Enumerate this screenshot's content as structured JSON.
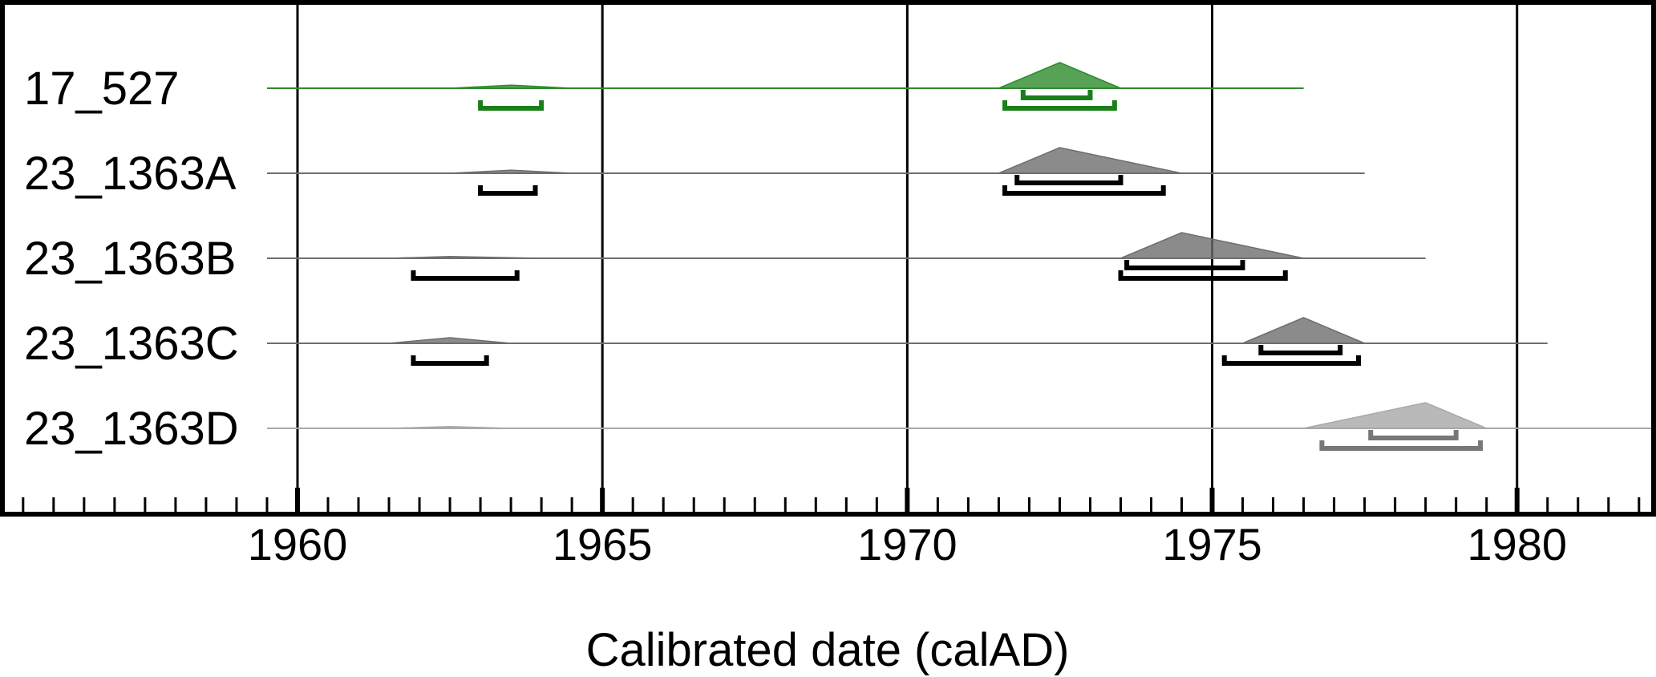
{
  "chart_data": {
    "type": "radiocarbon-calibration-multiplot",
    "xlabel": "Calibrated date (calAD)",
    "xlim": [
      1955.2,
      1982.2
    ],
    "x_ticks": [
      1960,
      1965,
      1970,
      1975,
      1980
    ],
    "x_tick_labels": [
      "1960",
      "1965",
      "1970",
      "1975",
      "1980"
    ],
    "minor_tick_step": 0.5,
    "grid": "vertical lines at major ticks",
    "series": [
      {
        "name": "17_527",
        "color": "#2e8b2e",
        "range_color": "#1a7f1a",
        "baseline": [
          1959.5,
          1976.5
        ],
        "peaks": [
          {
            "from": 1962.5,
            "mode": 1963.5,
            "to": 1964.5,
            "height": 0.12
          },
          {
            "from": 1971.5,
            "mode": 1972.5,
            "to": 1973.5,
            "height": 1.0
          }
        ],
        "ranges_68": [
          [
            1971.9,
            1973.0
          ]
        ],
        "ranges_95": [
          [
            1963.0,
            1964.0
          ],
          [
            1971.6,
            1973.4
          ]
        ]
      },
      {
        "name": "23_1363A",
        "color": "#6e6e6e",
        "range_color": "#000000",
        "baseline": [
          1959.5,
          1977.5
        ],
        "peaks": [
          {
            "from": 1962.5,
            "mode": 1963.5,
            "to": 1964.5,
            "height": 0.12
          },
          {
            "from": 1971.5,
            "mode": 1972.5,
            "to": 1974.5,
            "height": 1.0
          }
        ],
        "ranges_68": [
          [
            1971.8,
            1973.5
          ]
        ],
        "ranges_95": [
          [
            1963.0,
            1963.9
          ],
          [
            1971.6,
            1974.2
          ]
        ]
      },
      {
        "name": "23_1363B",
        "color": "#6e6e6e",
        "range_color": "#000000",
        "baseline": [
          1959.5,
          1978.5
        ],
        "peaks": [
          {
            "from": 1961.5,
            "mode": 1962.5,
            "to": 1964.0,
            "height": 0.07
          },
          {
            "from": 1973.5,
            "mode": 1974.5,
            "to": 1976.5,
            "height": 1.0
          }
        ],
        "ranges_68": [
          [
            1973.6,
            1975.5
          ]
        ],
        "ranges_95": [
          [
            1961.9,
            1963.6
          ],
          [
            1973.5,
            1976.2
          ]
        ]
      },
      {
        "name": "23_1363C",
        "color": "#6e6e6e",
        "range_color": "#000000",
        "baseline": [
          1959.5,
          1980.5
        ],
        "peaks": [
          {
            "from": 1961.5,
            "mode": 1962.5,
            "to": 1963.5,
            "height": 0.22
          },
          {
            "from": 1975.5,
            "mode": 1976.5,
            "to": 1977.5,
            "height": 1.0
          }
        ],
        "ranges_68": [
          [
            1975.8,
            1977.1
          ]
        ],
        "ranges_95": [
          [
            1961.9,
            1963.1
          ],
          [
            1975.2,
            1977.4
          ]
        ]
      },
      {
        "name": "23_1363D",
        "color": "#a8a8a8",
        "range_color": "#777777",
        "baseline": [
          1959.5,
          1982.2
        ],
        "peaks": [
          {
            "from": 1961.5,
            "mode": 1962.5,
            "to": 1963.5,
            "height": 0.07
          },
          {
            "from": 1976.5,
            "mode": 1978.5,
            "to": 1979.5,
            "height": 1.0
          }
        ],
        "ranges_68": [
          [
            1977.6,
            1979.0
          ]
        ],
        "ranges_95": [
          [
            1976.8,
            1979.4
          ]
        ]
      }
    ]
  }
}
